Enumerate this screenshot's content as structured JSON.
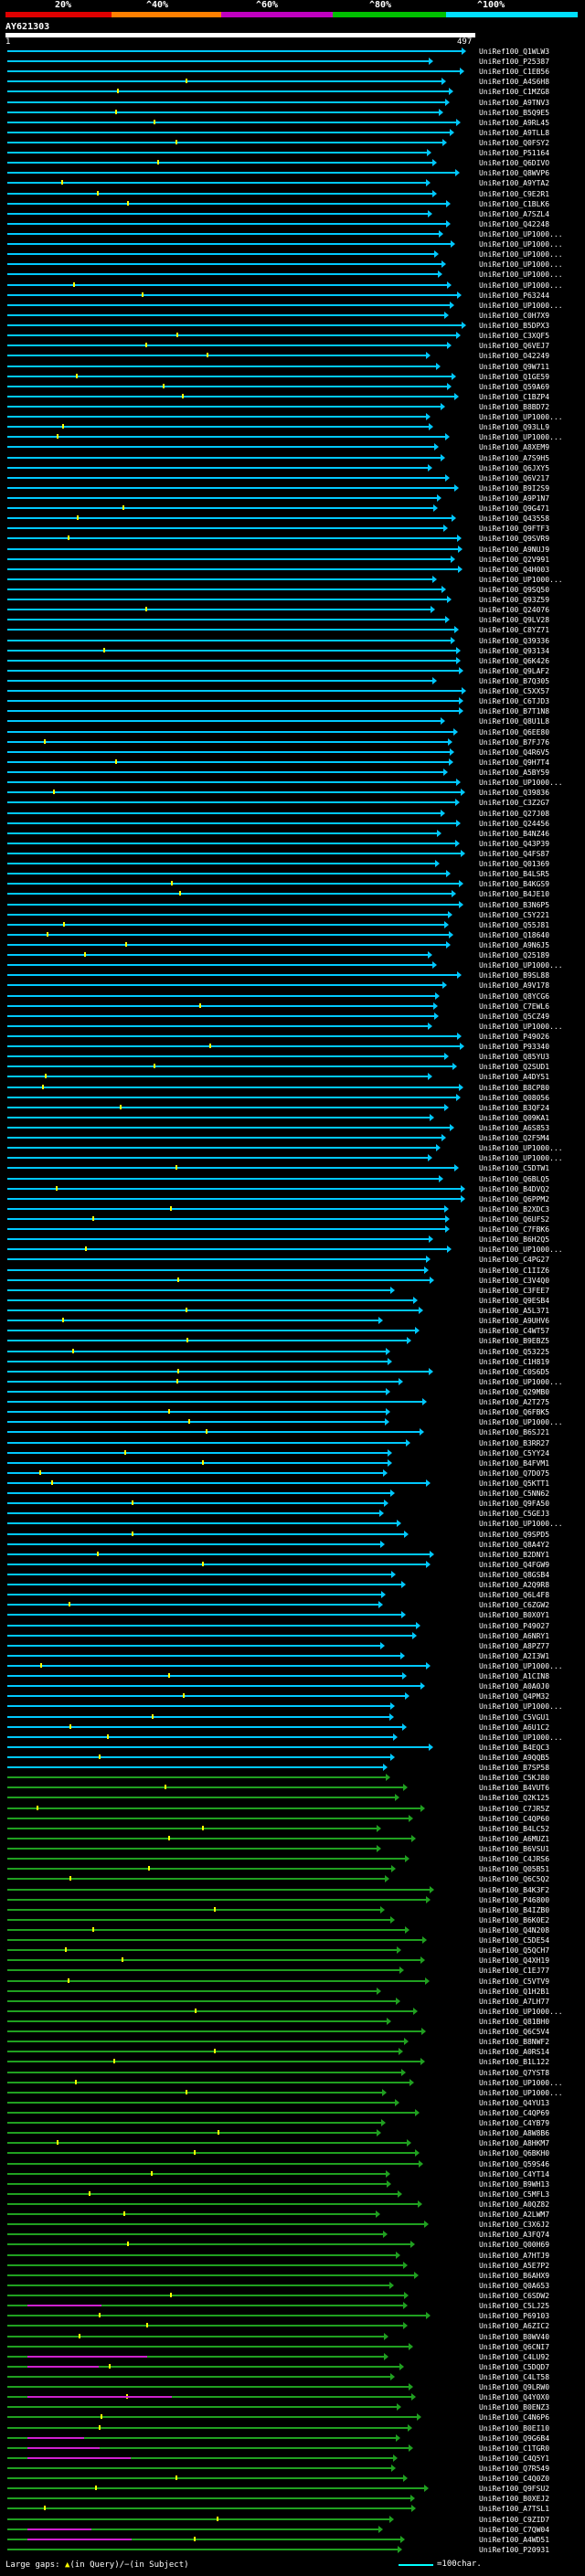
{
  "legend": {
    "labels": [
      "20%",
      "^40%",
      "^60%",
      "^80%",
      "^100%"
    ],
    "colors": [
      "#e00000",
      "#ff8000",
      "#c000c0",
      "#00c000",
      "#00e0ff"
    ]
  },
  "query": {
    "name": "AY621303",
    "start": "1",
    "end": "497"
  },
  "colors": {
    "cyan": "#00c8ff",
    "green": "#20a020",
    "magenta": "#d020d0"
  },
  "hits": [
    "UniRef100_Q1WLW3",
    "UniRef100_P25387",
    "UniRef100_C1EB56",
    "UniRef100_A4S6H8",
    "UniRef100_C1MZG8",
    "UniRef100_A9TNV3",
    "UniRef100_B5Q9E5",
    "UniRef100_A9RL45",
    "UniRef100_A9TLL8",
    "UniRef100_Q0FSY2",
    "UniRef100_P51164",
    "UniRef100_Q6DIVO",
    "UniRef100_Q8WVP6",
    "UniRef100_A9YTA2",
    "UniRef100_C9E2R1",
    "UniRef100_C1BLK6",
    "UniRef100_A7SZL4",
    "UniRef100_Q42248",
    "UniRef100_UP1000...",
    "UniRef100_UP1000...",
    "UniRef100_UP1000...",
    "UniRef100_UP1000...",
    "UniRef100_UP1000...",
    "UniRef100_UP1000...",
    "UniRef100_P63244",
    "UniRef100_UP1000...",
    "UniRef100_C0H7X9",
    "UniRef100_B5DPX3",
    "UniRef100_C3XQF5",
    "UniRef100_Q6VEJ7",
    "UniRef100_O42249",
    "UniRef100_Q9W711",
    "UniRef100_Q1GE59",
    "UniRef100_Q59A69",
    "UniRef100_C1BZP4",
    "UniRef100_B8BD72",
    "UniRef100_UP1000...",
    "UniRef100_Q93LL9",
    "UniRef100_UP1000...",
    "UniRef100_A8XEM9",
    "UniRef100_A7S9H5",
    "UniRef100_Q6JXY5",
    "UniRef100_Q6V217",
    "UniRef100_B9I2S9",
    "UniRef100_A9P1N7",
    "UniRef100_Q9G471",
    "UniRef100_Q43558",
    "UniRef100_Q9FTF3",
    "UniRef100_Q9SVR9",
    "UniRef100_A9NUJ9",
    "UniRef100_Q2V991",
    "UniRef100_Q4H003",
    "UniRef100_UP1000...",
    "UniRef100_Q9SQ50",
    "UniRef100_Q93Z59",
    "UniRef100_Q24076",
    "UniRef100_Q9LV28",
    "UniRef100_C8YZ71",
    "UniRef100_Q39336",
    "UniRef100_Q93134",
    "UniRef100_Q6K426",
    "UniRef100_Q9LAF2",
    "UniRef100_B7Q305",
    "UniRef100_C5XX57",
    "UniRef100_C6TJD3",
    "UniRef100_B7T1N8",
    "UniRef100_Q8U1L8",
    "UniRef100_Q6EE80",
    "UniRef100_B7FJ76",
    "UniRef100_Q4R6V5",
    "UniRef100_Q9H7T4",
    "UniRef100_A5BY59",
    "UniRef100_UP1000...",
    "UniRef100_Q39836",
    "UniRef100_C3Z2G7",
    "UniRef100_Q27J08",
    "UniRef100_Q24456",
    "UniRef100_B4NZ46",
    "UniRef100_Q43P39",
    "UniRef100_Q4FS87",
    "UniRef100_Q01369",
    "UniRef100_B4LSR5",
    "UniRef100_B4KGS9",
    "UniRef100_B4JE10",
    "UniRef100_B3N6P5",
    "UniRef100_C5Y221",
    "UniRef100_Q55J81",
    "UniRef100_Q18640",
    "UniRef100_A9N6J5",
    "UniRef100_Q25189",
    "UniRef100_UP1000...",
    "UniRef100_B9SL88",
    "UniRef100_A9V178",
    "UniRef100_Q8YCG6",
    "UniRef100_C7EWL6",
    "UniRef100_Q5CZ49",
    "UniRef100_UP1000...",
    "UniRef100_P49026",
    "UniRef100_P93340",
    "UniRef100_Q85YU3",
    "UniRef100_Q2SUD1",
    "UniRef100_A4DY51",
    "UniRef100_B8CP80",
    "UniRef100_Q08056",
    "UniRef100_B3QF24",
    "UniRef100_Q09KA1",
    "UniRef100_A6S853",
    "UniRef100_Q2F5M4",
    "UniRef100_UP1000...",
    "UniRef100_UP1000...",
    "UniRef100_C5DTW1",
    "UniRef100_Q6BLQ5",
    "UniRef100_B4DVQ2",
    "UniRef100_Q6PPM2",
    "UniRef100_B2XDC3",
    "UniRef100_Q6UFS2",
    "UniRef100_C7FBK6",
    "UniRef100_B6H2Q5",
    "UniRef100_UP1000...",
    "UniRef100_C4PG27",
    "UniRef100_C1IIZ6",
    "UniRef100_C3V4Q0",
    "UniRef100_C3FEE7",
    "UniRef100_Q9ESB4",
    "UniRef100_A5L371",
    "UniRef100_A9UHV6",
    "UniRef100_C4WT57",
    "UniRef100_B9EBZ5",
    "UniRef100_Q53225",
    "UniRef100_C1H819",
    "UniRef100_C0S6D5",
    "UniRef100_UP1000...",
    "UniRef100_Q29MB0",
    "UniRef100_A2T275",
    "UniRef100_Q6FBK5",
    "UniRef100_UP1000...",
    "UniRef100_B6SJ21",
    "UniRef100_B3RR27",
    "UniRef100_C5YY24",
    "UniRef100_B4FVM1",
    "UniRef100_Q7D075",
    "UniRef100_Q5KTT1",
    "UniRef100_C5NN62",
    "UniRef100_Q9FA50",
    "UniRef100_C5GEJ3",
    "UniRef100_UP1000...",
    "UniRef100_Q9SPD5",
    "UniRef100_Q8A4Y2",
    "UniRef100_B2DNY1",
    "UniRef100_Q4FGW9",
    "UniRef100_Q8GSB4",
    "UniRef100_A2Q9R8",
    "UniRef100_Q6L4F8",
    "UniRef100_C6ZGW2",
    "UniRef100_B0X0Y1",
    "UniRef100_P49027",
    "UniRef100_A6NRY1",
    "UniRef100_A8PZ77",
    "UniRef100_A2I3W1",
    "UniRef100_UP1000...",
    "UniRef100_A1CIN8",
    "UniRef100_A0A0J0",
    "UniRef100_Q4PM32",
    "UniRef100_UP1000...",
    "UniRef100_C5VGU1",
    "UniRef100_A6U1C2",
    "UniRef100_UP1000...",
    "UniRef100_B4EQC3",
    "UniRef100_A9QQB5",
    "UniRef100_B7SP58",
    "UniRef100_C5KJ80",
    "UniRef100_B4VUT6",
    "UniRef100_Q2K125",
    "UniRef100_C7JR5Z",
    "UniRef100_C4QP60",
    "UniRef100_B4LC52",
    "UniRef100_A6MUZ1",
    "UniRef100_B6VSU1",
    "UniRef100_C4JRS6",
    "UniRef100_Q05B51",
    "UniRef100_Q6C5Q2",
    "UniRef100_B4K3F2",
    "UniRef100_P46800",
    "UniRef100_B4IZB0",
    "UniRef100_B6K0E2",
    "UniRef100_Q4N208",
    "UniRef100_C5DE54",
    "UniRef100_Q5QCH7",
    "UniRef100_Q4XH19",
    "UniRef100_C1EJ77",
    "UniRef100_C5VTV9",
    "UniRef100_Q1H2B1",
    "UniRef100_A7LH77",
    "UniRef100_UP1000...",
    "UniRef100_Q81BH0",
    "UniRef100_Q6C5V4",
    "UniRef100_B8NWF2",
    "UniRef100_A0RS14",
    "UniRef100_B1L122",
    "UniRef100_Q7YST8",
    "UniRef100_UP1000...",
    "UniRef100_UP1000...",
    "UniRef100_Q4YU13",
    "UniRef100_C4QP69",
    "UniRef100_C4YB79",
    "UniRef100_A8W8B6",
    "UniRef100_A8HKM7",
    "UniRef100_Q6BKH0",
    "UniRef100_Q59S46",
    "UniRef100_C4YT14",
    "UniRef100_B9WH13",
    "UniRef100_C5MFL3",
    "UniRef100_A0QZ82",
    "UniRef100_A2LWM7",
    "UniRef100_C3X6J2",
    "UniRef100_A3FQ74",
    "UniRef100_Q00H69",
    "UniRef100_A7HTJ9",
    "UniRef100_A5E7P2",
    "UniRef100_B6AHX9",
    "UniRef100_Q0A653",
    "UniRef100_C6SDW2",
    "UniRef100_C5LJ25",
    "UniRef100_P69103",
    "UniRef100_A6ZIC2",
    "UniRef100_B0WV40",
    "UniRef100_Q6CNI7",
    "UniRef100_C4LU92",
    "UniRef100_C5DQD7",
    "UniRef100_C4LT58",
    "UniRef100_Q9LRW0",
    "UniRef100_Q4Y0X0",
    "UniRef100_B0ENZ3",
    "UniRef100_C4N6P6",
    "UniRef100_B0EI10",
    "UniRef100_Q9G6B4",
    "UniRef100_C1TGR0",
    "UniRef100_C4Q5Y1",
    "UniRef100_Q7R549",
    "UniRef100_C4Q0Z0",
    "UniRef100_Q9FSU2",
    "UniRef100_B0XEJ2",
    "UniRef100_A7TSL1",
    "UniRef100_C9ZID7",
    "UniRef100_C7QW04",
    "UniRef100_A4WD51",
    "UniRef100_P20931"
  ],
  "footer": {
    "large_gaps": "Large gaps:",
    "in_query": "in Query",
    "in_subject": "in Subject",
    "scale_label": "=100char."
  }
}
